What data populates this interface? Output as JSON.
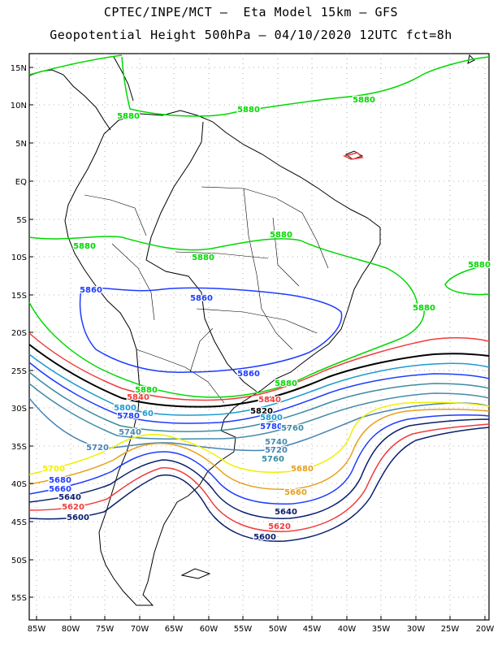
{
  "title": {
    "line1": "CPTEC/INPE/MCT –  Eta Model 15km – GFS",
    "line2": "Geopotential Height 500hPa – 04/10/2020 12UTC fct=8h"
  },
  "axes": {
    "lat_labels": [
      "15N",
      "10N",
      "5N",
      "EQ",
      "5S",
      "10S",
      "15S",
      "20S",
      "25S",
      "30S",
      "35S",
      "40S",
      "45S",
      "50S",
      "55S"
    ],
    "lon_labels": [
      "85W",
      "80W",
      "75W",
      "70W",
      "65W",
      "60W",
      "55W",
      "50W",
      "45W",
      "40W",
      "35W",
      "30W",
      "25W",
      "20W"
    ]
  },
  "colors": {
    "c5880": "#00d800",
    "c5860": "#1e3cff",
    "c5840": "#f03c3c",
    "c5820": "#000000",
    "c5800": "#1e9ad2",
    "c5780": "#1e3cff",
    "c5760": "#3c8ca0",
    "c5740": "#468caa",
    "c5720": "#4682b4",
    "c5700": "#f0f000",
    "c5680": "#e6a01e",
    "c5660": "#1e3cff",
    "c5640": "#0a1e6e",
    "c5620": "#f03c3c",
    "c5600": "#0a1e6e"
  },
  "contour_labels": [
    {
      "text": "5880",
      "color": "c5880"
    },
    {
      "text": "5880",
      "color": "c5880"
    },
    {
      "text": "5880",
      "color": "c5880"
    },
    {
      "text": "5880",
      "color": "c5880"
    },
    {
      "text": "5880",
      "color": "c5880"
    },
    {
      "text": "5880",
      "color": "c5880"
    },
    {
      "text": "5880",
      "color": "c5880"
    },
    {
      "text": "5880",
      "color": "c5880"
    },
    {
      "text": "5880",
      "color": "c5880"
    },
    {
      "text": "5880",
      "color": "c5880"
    },
    {
      "text": "5860",
      "color": "c5860"
    },
    {
      "text": "5860",
      "color": "c5860"
    },
    {
      "text": "5860",
      "color": "c5860"
    },
    {
      "text": "5840",
      "color": "c5840"
    },
    {
      "text": "5840",
      "color": "c5840"
    },
    {
      "text": "5820",
      "color": "c5820"
    },
    {
      "text": "5800",
      "color": "c5800"
    },
    {
      "text": "5800",
      "color": "c5800"
    },
    {
      "text": "5780",
      "color": "c5780"
    },
    {
      "text": "5780",
      "color": "c5780"
    },
    {
      "text": "60",
      "color": "c5800"
    },
    {
      "text": "5760",
      "color": "c5760"
    },
    {
      "text": "5740",
      "color": "c5740"
    },
    {
      "text": "5740",
      "color": "c5740"
    },
    {
      "text": "5720",
      "color": "c5720"
    },
    {
      "text": "5720",
      "color": "c5720"
    },
    {
      "text": "5760",
      "color": "c5760"
    },
    {
      "text": "5700",
      "color": "c5700"
    },
    {
      "text": "5680",
      "color": "c5660"
    },
    {
      "text": "5680",
      "color": "c5680"
    },
    {
      "text": "5660",
      "color": "c5660"
    },
    {
      "text": "5660",
      "color": "c5680"
    },
    {
      "text": "5640",
      "color": "c5640"
    },
    {
      "text": "5640",
      "color": "c5640"
    },
    {
      "text": "5620",
      "color": "c5620"
    },
    {
      "text": "5620",
      "color": "c5620"
    },
    {
      "text": "5600",
      "color": "c5600"
    },
    {
      "text": "5600",
      "color": "c5600"
    }
  ]
}
